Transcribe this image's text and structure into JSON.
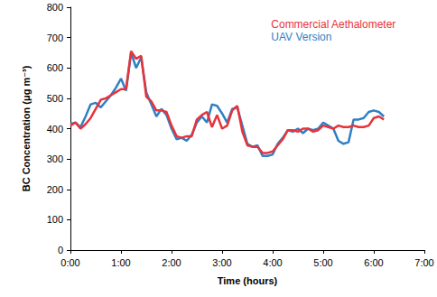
{
  "chart_data": {
    "type": "line",
    "x_label": "Time (hours)",
    "y_label": "BC Concentration (μg m⁻³)",
    "x": [
      0.0,
      0.1,
      0.2,
      0.3,
      0.4,
      0.5,
      0.6,
      0.7,
      0.8,
      0.9,
      1.0,
      1.1,
      1.2,
      1.3,
      1.4,
      1.5,
      1.6,
      1.7,
      1.8,
      1.9,
      2.0,
      2.1,
      2.2,
      2.3,
      2.4,
      2.5,
      2.6,
      2.7,
      2.8,
      2.9,
      3.0,
      3.1,
      3.2,
      3.3,
      3.4,
      3.5,
      3.6,
      3.7,
      3.8,
      3.9,
      4.0,
      4.1,
      4.2,
      4.3,
      4.4,
      4.5,
      4.6,
      4.7,
      4.8,
      4.9,
      5.0,
      5.1,
      5.2,
      5.3,
      5.4,
      5.5,
      5.6,
      5.7,
      5.8,
      5.9,
      6.0,
      6.1,
      6.2
    ],
    "series": [
      {
        "name": "UAV Version",
        "color": "#2f80c4",
        "values": [
          415,
          420,
          405,
          440,
          480,
          485,
          470,
          490,
          510,
          535,
          565,
          525,
          650,
          600,
          635,
          520,
          480,
          440,
          465,
          445,
          400,
          365,
          370,
          360,
          380,
          420,
          440,
          420,
          480,
          475,
          450,
          420,
          465,
          470,
          410,
          350,
          340,
          345,
          310,
          310,
          315,
          350,
          370,
          395,
          390,
          400,
          385,
          400,
          395,
          400,
          420,
          410,
          400,
          360,
          350,
          355,
          430,
          430,
          435,
          455,
          460,
          455,
          440
        ]
      },
      {
        "name": "Commercial Aethalometer",
        "color": "#e8323a",
        "values": [
          410,
          420,
          400,
          415,
          435,
          465,
          495,
          500,
          510,
          520,
          530,
          530,
          655,
          630,
          640,
          505,
          490,
          460,
          460,
          455,
          410,
          375,
          370,
          375,
          375,
          430,
          445,
          455,
          405,
          445,
          400,
          410,
          460,
          475,
          390,
          345,
          340,
          340,
          320,
          320,
          325,
          345,
          365,
          395,
          395,
          390,
          400,
          400,
          390,
          395,
          410,
          405,
          400,
          410,
          405,
          405,
          410,
          405,
          405,
          410,
          435,
          440,
          430
        ]
      }
    ],
    "xlim": [
      0,
      7
    ],
    "xticks": [
      {
        "value": 0,
        "label": "0:00"
      },
      {
        "value": 1,
        "label": "1:00"
      },
      {
        "value": 2,
        "label": "2:00"
      },
      {
        "value": 3,
        "label": "3:00"
      },
      {
        "value": 4,
        "label": "4:00"
      },
      {
        "value": 5,
        "label": "5:00"
      },
      {
        "value": 6,
        "label": "6:00"
      },
      {
        "value": 7,
        "label": "7:00"
      }
    ],
    "ylim": [
      0,
      800
    ],
    "yticks": [
      0,
      100,
      200,
      300,
      400,
      500,
      600,
      700,
      800
    ],
    "grid": false,
    "legend": "upper right"
  }
}
